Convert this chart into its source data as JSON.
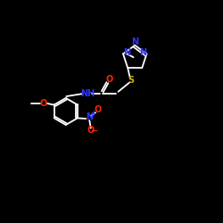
{
  "background_color": "#000000",
  "bond_color": "#ffffff",
  "N_color": "#3333ff",
  "O_color": "#ff2200",
  "S_color": "#ccaa00",
  "figsize": [
    2.5,
    2.5
  ],
  "dpi": 100,
  "xlim": [
    0,
    10
  ],
  "ylim": [
    0,
    10
  ]
}
